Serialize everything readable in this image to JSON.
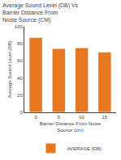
{
  "chart_data": {
    "type": "bar",
    "title": "Average Sound Level (DB) Vs Barrier Distance From\nNoise Source (CM)",
    "xlabel": "Barrier Distance From Noise Source (cm)",
    "ylabel": "Average Sound Level (DB)",
    "categories": [
      "0",
      "5",
      "10",
      "15"
    ],
    "series": [
      {
        "name": "AVERAGE (DB)",
        "color": "#E87722",
        "values": [
          87,
          74,
          75,
          70
        ]
      }
    ],
    "ylim": [
      0,
      100
    ],
    "yticks": [
      0,
      20,
      40,
      60,
      80,
      100
    ],
    "grid": false,
    "legend": "bottom"
  }
}
